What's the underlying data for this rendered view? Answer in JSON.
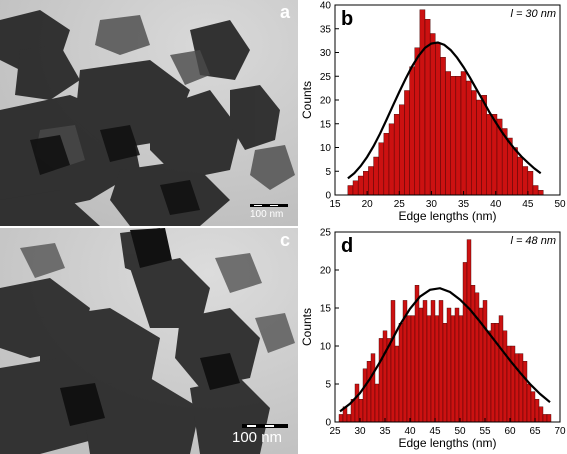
{
  "panels": {
    "a": {
      "letter": "a",
      "scale_bar": "100 nm"
    },
    "c": {
      "letter": "c",
      "scale_bar": "100 nm"
    }
  },
  "colors": {
    "bar_fill": "#cc1111",
    "bar_stroke": "#3a0000",
    "fit_line": "#000000",
    "letter_white": "#ffffff"
  },
  "chart_data": [
    {
      "type": "bar",
      "panel_letter": "b",
      "annotation": "l = 30 nm",
      "xlabel": "Edge lengths (nm)",
      "ylabel": "Counts",
      "xlim": [
        15,
        50
      ],
      "ylim": [
        0,
        40
      ],
      "xticks": [
        15,
        20,
        25,
        30,
        35,
        40,
        45,
        50
      ],
      "yticks": [
        0,
        5,
        10,
        15,
        20,
        25,
        30,
        35,
        40
      ],
      "bin_width": 0.8,
      "bin_centers": [
        17.4,
        18.2,
        19.0,
        19.8,
        20.6,
        21.4,
        22.2,
        23.0,
        23.8,
        24.6,
        25.4,
        26.2,
        27.0,
        27.8,
        28.6,
        29.4,
        30.2,
        31.0,
        31.8,
        32.6,
        33.4,
        34.2,
        35.0,
        35.8,
        36.6,
        37.4,
        38.2,
        39.0,
        39.8,
        40.6,
        41.4,
        42.2,
        43.0,
        43.8,
        44.6,
        45.4,
        46.2,
        47.0
      ],
      "counts": [
        2,
        3,
        4,
        5,
        6,
        8,
        11,
        13,
        15,
        17,
        19,
        22,
        27,
        31,
        39,
        37,
        34,
        32,
        29,
        26,
        25,
        25,
        26,
        24,
        22,
        20,
        21,
        17,
        17,
        16,
        14,
        12,
        10,
        8,
        6,
        5,
        2,
        1
      ],
      "fit": {
        "type": "log-normal",
        "x": [
          17,
          18,
          19,
          20,
          21,
          22,
          23,
          24,
          25,
          26,
          27,
          28,
          29,
          30,
          31,
          32,
          33,
          34,
          35,
          36,
          37,
          38,
          39,
          40,
          41,
          42,
          43,
          44,
          45,
          46,
          47
        ],
        "y": [
          3.5,
          4.6,
          6.1,
          8.0,
          10.3,
          12.9,
          15.8,
          18.8,
          21.7,
          24.5,
          27.1,
          29.3,
          31.0,
          31.9,
          32.1,
          31.6,
          30.5,
          28.9,
          26.9,
          24.7,
          22.3,
          19.9,
          17.5,
          15.3,
          13.2,
          11.3,
          9.6,
          8.1,
          6.8,
          5.6,
          4.6
        ]
      }
    },
    {
      "type": "bar",
      "panel_letter": "d",
      "annotation": "l = 48 nm",
      "xlabel": "Edge lengths (nm)",
      "ylabel": "Counts",
      "xlim": [
        25,
        70
      ],
      "ylim": [
        0,
        25
      ],
      "xticks": [
        25,
        30,
        35,
        40,
        45,
        50,
        55,
        60,
        65,
        70
      ],
      "yticks": [
        0,
        5,
        10,
        15,
        20,
        25
      ],
      "bin_width": 0.8,
      "bin_centers": [
        26.2,
        27.0,
        27.8,
        28.6,
        29.4,
        30.2,
        31.0,
        31.8,
        32.6,
        33.4,
        34.2,
        35.0,
        35.8,
        36.6,
        37.4,
        38.2,
        39.0,
        39.8,
        40.6,
        41.4,
        42.2,
        43.0,
        43.8,
        44.6,
        45.4,
        46.2,
        47.0,
        47.8,
        48.6,
        49.4,
        50.2,
        51.0,
        51.8,
        52.6,
        53.4,
        54.2,
        55.0,
        55.8,
        56.6,
        57.4,
        58.2,
        59.0,
        59.8,
        60.6,
        61.4,
        62.2,
        63.0,
        63.8,
        64.6,
        65.4,
        66.2,
        67.0,
        67.8
      ],
      "counts": [
        1,
        2,
        1,
        3,
        5,
        3,
        7,
        8,
        9,
        5,
        11,
        12,
        11,
        16,
        10,
        13,
        16,
        14,
        14,
        18,
        15,
        16,
        14,
        16,
        14,
        16,
        13,
        15,
        14,
        15,
        14,
        21,
        24,
        18,
        17,
        15,
        16,
        12,
        13,
        13,
        14,
        12,
        10,
        10,
        9,
        9,
        8,
        5,
        4,
        3,
        2,
        1,
        1
      ],
      "fit": {
        "type": "log-normal",
        "x": [
          26,
          28,
          30,
          32,
          34,
          36,
          38,
          40,
          42,
          44,
          46,
          48,
          50,
          52,
          54,
          56,
          58,
          60,
          62,
          64,
          66,
          68
        ],
        "y": [
          1.4,
          2.4,
          3.8,
          5.7,
          7.9,
          10.3,
          12.8,
          14.9,
          16.5,
          17.4,
          17.6,
          17.1,
          16.1,
          14.8,
          13.2,
          11.5,
          9.8,
          8.1,
          6.5,
          5.0,
          3.7,
          2.6
        ]
      }
    }
  ]
}
